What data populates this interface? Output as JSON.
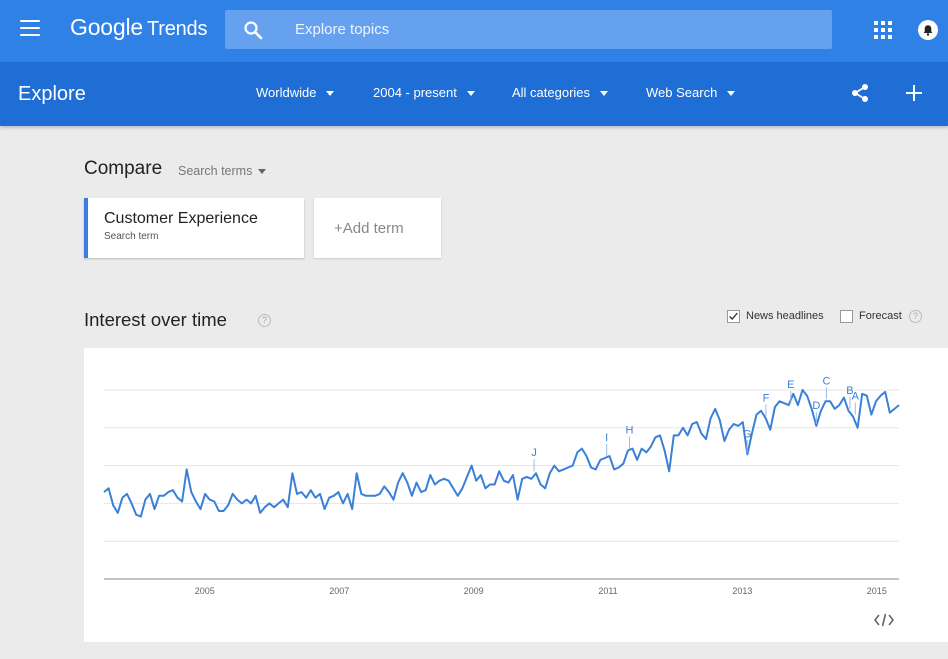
{
  "header": {
    "logo_google": "Google",
    "logo_trends": "Trends",
    "search_placeholder": "Explore topics"
  },
  "explore_bar": {
    "title": "Explore",
    "filters": [
      {
        "label": "Worldwide"
      },
      {
        "label": "2004 - present"
      },
      {
        "label": "All categories"
      },
      {
        "label": "Web Search"
      }
    ]
  },
  "compare": {
    "title": "Compare",
    "dropdown_label": "Search terms",
    "term": {
      "name": "Customer Experience",
      "type": "Search term"
    },
    "add_term_label": "+Add term"
  },
  "interest": {
    "title": "Interest over time",
    "help_glyph": "?",
    "news_headlines": {
      "label": "News headlines",
      "checked": true
    },
    "forecast": {
      "label": "Forecast",
      "checked": false
    },
    "embed_label": "</>"
  },
  "colors": {
    "topbar": "#2f81e6",
    "explorebar": "#1f6ed6",
    "line": "#3a80d9",
    "term_accent": "#3c7ee0"
  },
  "chart_data": {
    "type": "line",
    "x_start_year": 2004,
    "x_end_year": 2015.83,
    "x_tick_labels": [
      "2005",
      "2007",
      "2009",
      "2011",
      "2013",
      "2015"
    ],
    "ylim": [
      0,
      100
    ],
    "grid": true,
    "series": [
      {
        "values": [
          46,
          48,
          39,
          35,
          43,
          45,
          40,
          34,
          33,
          42,
          45,
          37,
          44,
          44,
          46,
          47,
          43,
          41,
          58,
          46,
          41,
          37,
          45,
          42,
          41,
          36,
          36,
          39,
          45,
          42,
          40,
          42,
          40,
          44,
          35,
          38,
          40,
          38,
          40,
          42,
          38,
          56,
          45,
          46,
          43,
          47,
          43,
          45,
          37,
          43,
          44,
          46,
          40,
          45,
          37,
          56,
          45,
          44,
          44,
          44,
          45,
          49,
          46,
          42,
          51,
          56,
          51,
          44,
          51,
          46,
          47,
          55,
          50,
          52,
          53,
          52,
          48,
          44,
          48,
          54,
          60,
          52,
          55,
          48,
          50,
          50,
          57,
          52,
          51,
          55,
          42,
          53,
          54,
          53,
          56,
          50,
          48,
          56,
          60,
          57,
          58,
          59,
          60,
          67,
          69,
          65,
          59,
          58,
          63,
          64,
          65,
          58,
          59,
          61,
          68,
          69,
          63,
          69,
          67,
          70,
          75,
          76,
          68,
          57,
          76,
          76,
          80,
          76,
          82,
          83,
          77,
          74,
          85,
          90,
          84,
          73,
          79,
          82,
          81,
          83,
          66,
          77,
          87,
          89,
          85,
          79,
          91,
          94,
          93,
          92,
          98,
          92,
          100,
          97,
          90,
          81,
          89,
          94,
          94,
          90,
          92,
          96,
          89,
          86,
          80,
          98,
          97,
          87,
          94,
          97,
          99,
          88,
          90,
          92
        ]
      }
    ],
    "annotations": [
      {
        "label": "A",
        "x": 2015.18
      },
      {
        "label": "B",
        "x": 2015.1
      },
      {
        "label": "C",
        "x": 2014.75
      },
      {
        "label": "D",
        "x": 2014.6
      },
      {
        "label": "E",
        "x": 2014.22
      },
      {
        "label": "F",
        "x": 2013.85
      },
      {
        "label": "G",
        "x": 2013.57
      },
      {
        "label": "H",
        "x": 2011.82
      },
      {
        "label": "I",
        "x": 2011.48
      },
      {
        "label": "J",
        "x": 2010.4
      }
    ]
  }
}
